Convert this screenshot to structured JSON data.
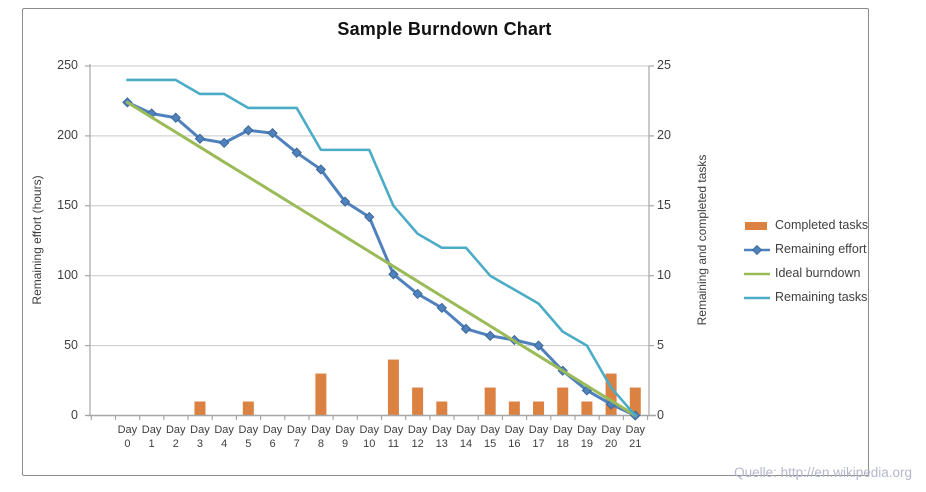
{
  "title": "Sample Burndown Chart",
  "watermark": "Quelle: http://en.wikipedia.org",
  "axes": {
    "left_title": "Remaining effort (hours)",
    "right_title": "Remaining and completed tasks",
    "left_ticks": [
      250,
      200,
      150,
      100,
      50,
      0
    ],
    "right_ticks": [
      25,
      20,
      15,
      10,
      5,
      0
    ],
    "x_word": "Day"
  },
  "legend": {
    "position": "right",
    "items": [
      {
        "label": "Completed tasks",
        "swatch": "bar",
        "color": "#db8243"
      },
      {
        "label": "Remaining effort",
        "swatch": "line-diamond",
        "color": "#4f81bd"
      },
      {
        "label": "Ideal burndown",
        "swatch": "line",
        "color": "#9bbb59"
      },
      {
        "label": "Remaining tasks",
        "swatch": "line",
        "color": "#4bacc6"
      }
    ]
  },
  "colors": {
    "grid": "#c9c9c9",
    "axis": "#a6a6a6",
    "bar": "#db8243",
    "effort": "#4f81bd",
    "effort_marker_edge": "#35618f",
    "ideal": "#9bbb59",
    "tasks": "#4bacc6"
  },
  "chart_data": {
    "type": "combo",
    "title": "Sample Burndown Chart",
    "categories": [
      "Day 0",
      "Day 1",
      "Day 2",
      "Day 3",
      "Day 4",
      "Day 5",
      "Day 6",
      "Day 7",
      "Day 8",
      "Day 9",
      "Day 10",
      "Day 11",
      "Day 12",
      "Day 13",
      "Day 14",
      "Day 15",
      "Day 16",
      "Day 17",
      "Day 18",
      "Day 19",
      "Day 20",
      "Day 21"
    ],
    "left_axis": {
      "label": "Remaining effort (hours)",
      "range": [
        0,
        250
      ],
      "ticks": [
        0,
        50,
        100,
        150,
        200,
        250
      ]
    },
    "right_axis": {
      "label": "Remaining and completed tasks",
      "range": [
        0,
        25
      ],
      "ticks": [
        0,
        5,
        10,
        15,
        20,
        25
      ]
    },
    "grid": true,
    "legend_position": "right",
    "series": [
      {
        "name": "Completed tasks",
        "type": "bar",
        "axis": "right",
        "color": "#db8243",
        "values": [
          0,
          0,
          0,
          1,
          0,
          1,
          0,
          0,
          3,
          0,
          0,
          4,
          2,
          1,
          0,
          2,
          1,
          1,
          2,
          1,
          3,
          2
        ]
      },
      {
        "name": "Remaining effort",
        "type": "line",
        "marker": "diamond",
        "axis": "left",
        "color": "#4f81bd",
        "values": [
          224,
          216,
          213,
          198,
          195,
          204,
          202,
          188,
          176,
          153,
          142,
          101,
          87,
          77,
          62,
          57,
          54,
          50,
          32,
          18,
          8,
          0
        ]
      },
      {
        "name": "Ideal burndown",
        "type": "line",
        "axis": "left",
        "color": "#9bbb59",
        "values": [
          224,
          213.3,
          202.7,
          192,
          181.3,
          170.7,
          160,
          149.3,
          138.7,
          128,
          117.3,
          106.7,
          96,
          85.3,
          74.7,
          64,
          53.3,
          42.7,
          32,
          21.3,
          10.7,
          0
        ]
      },
      {
        "name": "Remaining tasks",
        "type": "line",
        "axis": "right",
        "color": "#4bacc6",
        "values": [
          24,
          24,
          24,
          23,
          23,
          22,
          22,
          22,
          19,
          19,
          19,
          15,
          13,
          12,
          12,
          10,
          9,
          8,
          6,
          5,
          2,
          0
        ]
      }
    ]
  }
}
